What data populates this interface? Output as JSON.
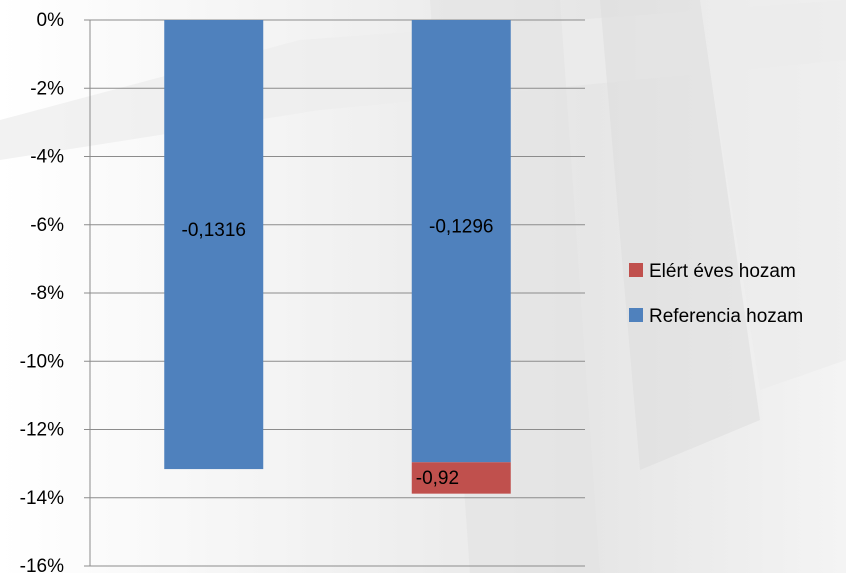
{
  "chart_data": {
    "type": "bar",
    "stacked": true,
    "categories": [
      "",
      ""
    ],
    "series": [
      {
        "name": "Referencia hozam",
        "color": "#4F81BD",
        "values": [
          -13.16,
          -12.96
        ],
        "labels": [
          "-0,1316",
          "-0,1296"
        ]
      },
      {
        "name": "Elért éves hozam",
        "color": "#C0504D",
        "values": [
          0,
          -0.92
        ],
        "labels": [
          null,
          "-0,92"
        ]
      }
    ],
    "ylim": [
      -16,
      0
    ],
    "yticks": [
      0,
      -2,
      -4,
      -6,
      -8,
      -10,
      -12,
      -14,
      -16
    ],
    "ytick_labels": [
      "0%",
      "-2%",
      "-4%",
      "-6%",
      "-8%",
      "-10%",
      "-12%",
      "-14%",
      "-16%"
    ],
    "grid": true,
    "legend": {
      "position": "right",
      "entries": [
        {
          "name": "Elért éves hozam",
          "color": "#C0504D"
        },
        {
          "name": "Referencia hozam",
          "color": "#4F81BD"
        }
      ]
    }
  }
}
